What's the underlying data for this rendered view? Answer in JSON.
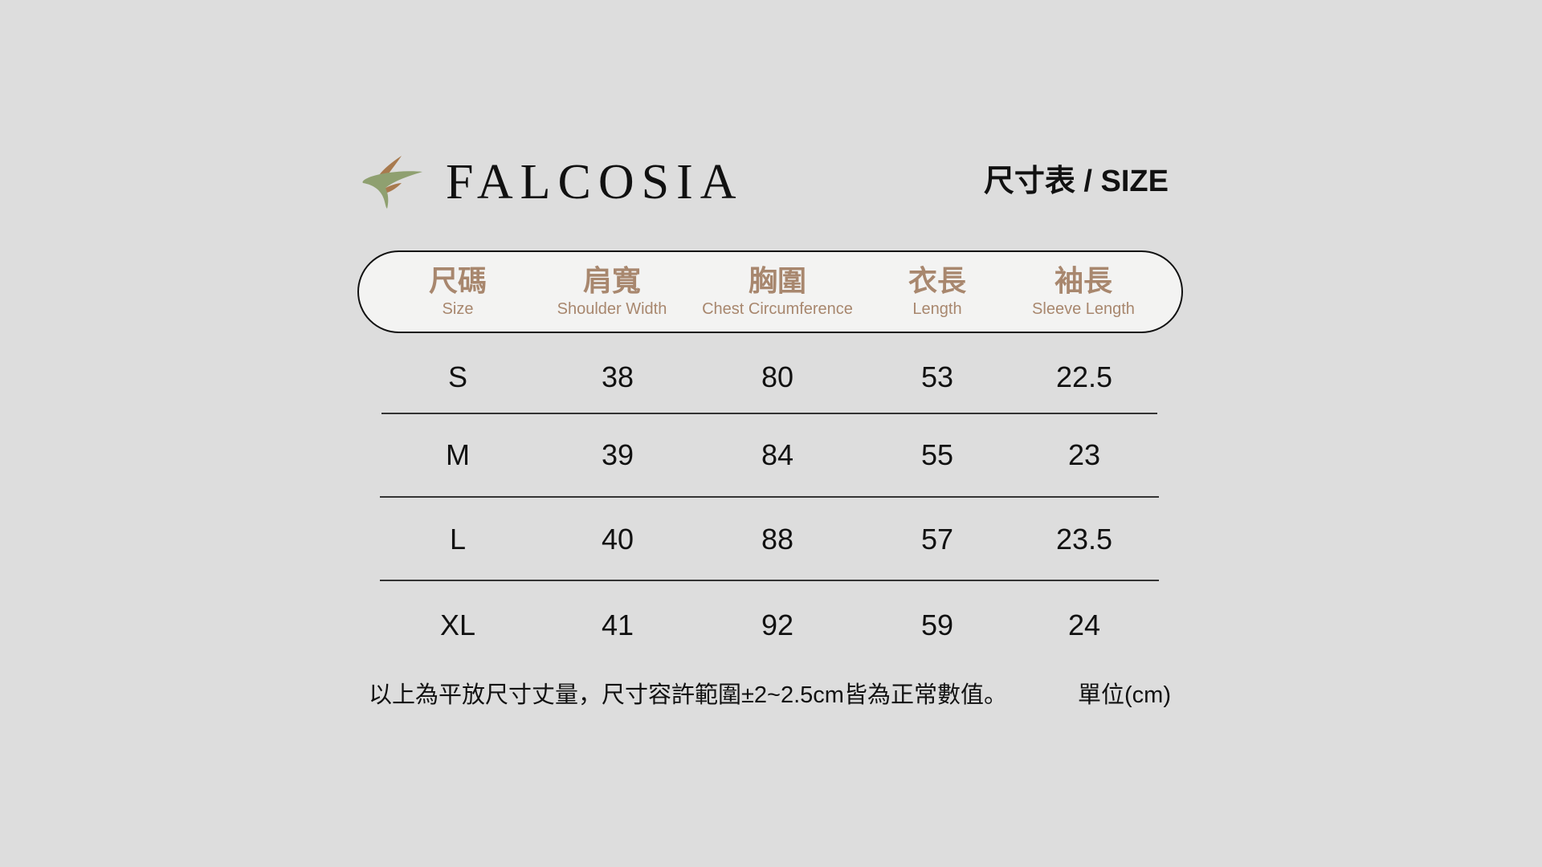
{
  "brand": {
    "name": "FALCOSIA",
    "logo_colors": {
      "leaf": "#8fa070",
      "accent": "#a87a4e"
    }
  },
  "title": "尺寸表 / SIZE",
  "header_color": "#a8876e",
  "columns": [
    {
      "zh": "尺碼",
      "en": "Size"
    },
    {
      "zh": "肩寬",
      "en": "Shoulder Width"
    },
    {
      "zh": "胸圍",
      "en": "Chest Circumference"
    },
    {
      "zh": "衣長",
      "en": "Length"
    },
    {
      "zh": "袖長",
      "en": "Sleeve Length"
    }
  ],
  "rows": [
    [
      "S",
      "38",
      "80",
      "53",
      "22.5"
    ],
    [
      "M",
      "39",
      "84",
      "55",
      "23"
    ],
    [
      "L",
      "40",
      "88",
      "57",
      "23.5"
    ],
    [
      "XL",
      "41",
      "92",
      "59",
      "24"
    ]
  ],
  "note": "以上為平放尺寸丈量，尺寸容許範圍±2~2.5cm皆為正常數值。",
  "unit": "單位(cm)"
}
